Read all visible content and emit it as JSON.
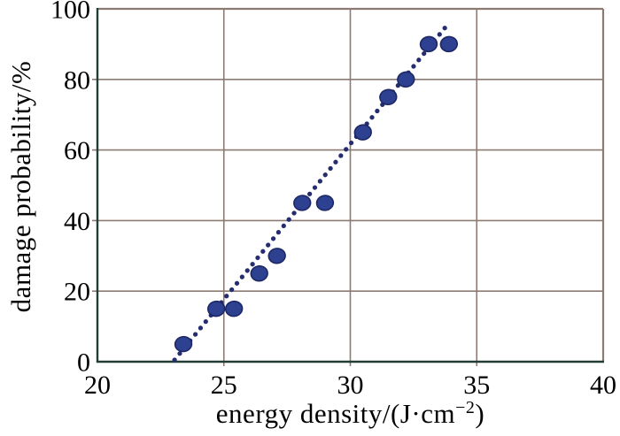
{
  "chart_data": {
    "type": "scatter",
    "title": "",
    "ylabel": "damage probability/%",
    "xlabel_main": "energy density/(J·cm",
    "xlabel_sup": "−2",
    "xlabel_end": ")",
    "xlim": [
      20,
      40
    ],
    "ylim": [
      0,
      100
    ],
    "xticks": [
      20,
      25,
      30,
      35,
      40
    ],
    "yticks": [
      0,
      20,
      40,
      60,
      80,
      100
    ],
    "grid": true,
    "legend": "none",
    "points": [
      [
        23.4,
        5
      ],
      [
        24.7,
        15
      ],
      [
        25.4,
        15
      ],
      [
        26.4,
        25
      ],
      [
        27.1,
        30
      ],
      [
        28.1,
        45
      ],
      [
        29.0,
        45
      ],
      [
        30.5,
        65
      ],
      [
        31.5,
        75
      ],
      [
        32.2,
        80
      ],
      [
        33.1,
        90
      ],
      [
        33.9,
        90
      ]
    ],
    "trend_line": {
      "style": "dotted",
      "x1": 23.05,
      "y1": 0.5,
      "x2": 33.9,
      "y2": 96.0
    },
    "colors": {
      "marker_fill": "#2d4190",
      "marker_stroke": "#1d2766",
      "trend": "#262d6e",
      "grid": "#8d7b73",
      "axis_dark": "#223d36",
      "text": "#000000",
      "background": "#ffffff"
    }
  }
}
